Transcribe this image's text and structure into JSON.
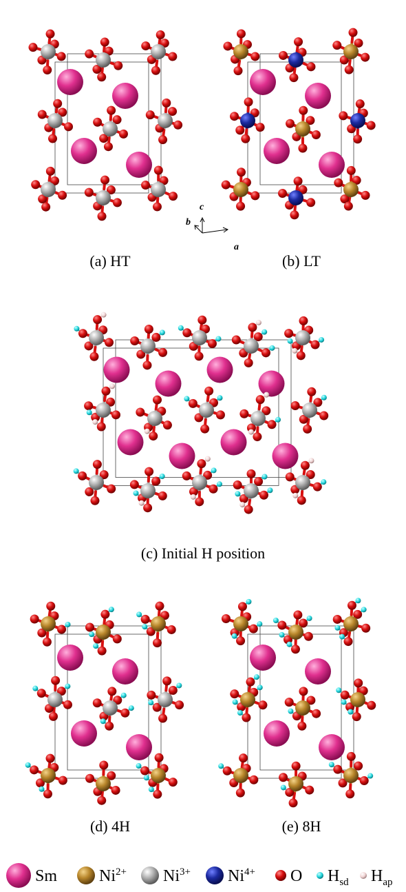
{
  "panels": [
    {
      "label": "(a) HT"
    },
    {
      "label": "(b) LT"
    },
    {
      "label": "(c) Initial H position"
    },
    {
      "label": "(d) 4H"
    },
    {
      "label": "(e) 8H"
    }
  ],
  "axes": {
    "c": "c",
    "b": "b",
    "a": "a"
  },
  "legend": [
    {
      "name": "Sm"
    },
    {
      "name": "Ni",
      "sup": "2+"
    },
    {
      "name": "Ni",
      "sup": "3+"
    },
    {
      "name": "Ni",
      "sup": "4+"
    },
    {
      "name": "O"
    },
    {
      "name": "H",
      "sub": "sd"
    },
    {
      "name": "H",
      "sub": "ap"
    }
  ]
}
